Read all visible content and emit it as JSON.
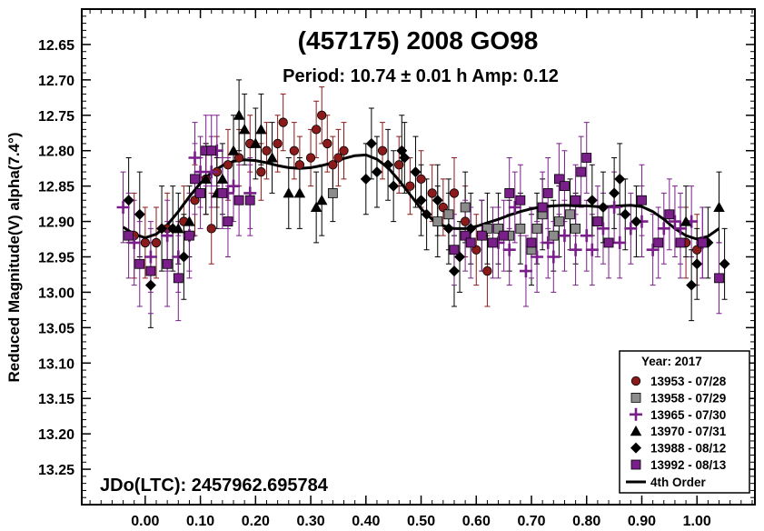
{
  "chart_data": {
    "type": "scatter",
    "title": "(457175) 2008 GO98",
    "subtitle": "Period: 10.74 ± 0.01 h  Amp: 0.12",
    "ylabel": "Reduced Magnitude(V) alpha(7.4°)",
    "xlabel": "",
    "xlim": [
      -0.115,
      1.105
    ],
    "ylim": [
      12.6,
      13.3
    ],
    "y_inverted": true,
    "x_ticks": [
      0.0,
      0.1,
      0.2,
      0.3,
      0.4,
      0.5,
      0.6,
      0.7,
      0.8,
      0.9,
      1.0
    ],
    "x_tick_labels": [
      "0.00",
      "0.10",
      "0.20",
      "0.30",
      "0.40",
      "0.50",
      "0.60",
      "0.70",
      "0.80",
      "0.90",
      "1.00"
    ],
    "y_ticks": [
      12.65,
      12.7,
      12.75,
      12.8,
      12.85,
      12.9,
      12.95,
      13.0,
      13.05,
      13.1,
      13.15,
      13.2,
      13.25
    ],
    "y_tick_labels": [
      "12.65",
      "12.70",
      "12.75",
      "12.80",
      "12.85",
      "12.90",
      "12.95",
      "13.00",
      "13.05",
      "13.10",
      "13.15",
      "13.20",
      "13.25"
    ],
    "grid": false,
    "annotation": "JDo(LTC): 2457962.695784",
    "legend": {
      "placement": "bottom-right",
      "title": "Year: 2017",
      "fit_label": "4th Order"
    },
    "series": [
      {
        "name": "13953 - 07/28",
        "marker": "circle",
        "color": "#8b1a1a",
        "errcolor": "#8b1a1a",
        "points": [
          [
            -0.02,
            12.92,
            0.06
          ],
          [
            0.0,
            12.93,
            0.05
          ],
          [
            0.02,
            12.93,
            0.05
          ],
          [
            0.04,
            12.91,
            0.05
          ],
          [
            0.07,
            12.9,
            0.05
          ],
          [
            0.09,
            12.87,
            0.05
          ],
          [
            0.11,
            12.84,
            0.05
          ],
          [
            0.12,
            12.91,
            0.05
          ],
          [
            0.13,
            12.83,
            0.05
          ],
          [
            0.15,
            12.82,
            0.05
          ],
          [
            0.17,
            12.81,
            0.04
          ],
          [
            0.19,
            12.79,
            0.04
          ],
          [
            0.21,
            12.83,
            0.04
          ],
          [
            0.22,
            12.8,
            0.04
          ],
          [
            0.24,
            12.79,
            0.04
          ],
          [
            0.25,
            12.76,
            0.04
          ],
          [
            0.27,
            12.8,
            0.04
          ],
          [
            0.28,
            12.82,
            0.04
          ],
          [
            0.3,
            12.81,
            0.04
          ],
          [
            0.31,
            12.77,
            0.04
          ],
          [
            0.32,
            12.75,
            0.04
          ],
          [
            0.33,
            12.79,
            0.04
          ],
          [
            0.34,
            12.82,
            0.04
          ],
          [
            0.35,
            12.81,
            0.04
          ],
          [
            0.36,
            12.8,
            0.04
          ],
          [
            0.43,
            12.8,
            0.04
          ],
          [
            0.46,
            12.82,
            0.04
          ],
          [
            0.48,
            12.85,
            0.04
          ],
          [
            0.5,
            12.84,
            0.04
          ],
          [
            0.52,
            12.86,
            0.04
          ],
          [
            0.54,
            12.88,
            0.04
          ],
          [
            0.56,
            12.86,
            0.05
          ],
          [
            0.58,
            12.9,
            0.05
          ],
          [
            0.6,
            12.94,
            0.05
          ],
          [
            0.62,
            12.97,
            0.05
          ],
          [
            0.98,
            12.93,
            0.05
          ],
          [
            1.0,
            12.94,
            0.05
          ]
        ]
      },
      {
        "name": "13958 - 07/29",
        "marker": "square",
        "color": "#8c8c8c",
        "errcolor": "#000000",
        "points": [
          [
            0.34,
            12.86,
            0.04
          ],
          [
            0.53,
            12.9,
            0.05
          ],
          [
            0.55,
            12.89,
            0.05
          ],
          [
            0.58,
            12.88,
            0.05
          ],
          [
            0.62,
            12.91,
            0.05
          ],
          [
            0.64,
            12.91,
            0.05
          ],
          [
            0.66,
            12.92,
            0.05
          ],
          [
            0.68,
            12.91,
            0.05
          ],
          [
            0.7,
            12.94,
            0.05
          ],
          [
            0.71,
            12.91,
            0.05
          ],
          [
            0.72,
            12.89,
            0.05
          ],
          [
            0.74,
            12.92,
            0.05
          ],
          [
            0.75,
            12.9,
            0.05
          ],
          [
            0.77,
            12.89,
            0.05
          ],
          [
            0.78,
            12.91,
            0.05
          ]
        ]
      },
      {
        "name": "13965 - 07/30",
        "marker": "plus",
        "color": "#7a1f8a",
        "errcolor": "#7a1f8a",
        "points": [
          [
            -0.04,
            12.88,
            0.05
          ],
          [
            -0.02,
            12.93,
            0.06
          ],
          [
            0.01,
            12.95,
            0.05
          ],
          [
            0.04,
            12.92,
            0.05
          ],
          [
            0.06,
            12.95,
            0.05
          ],
          [
            0.08,
            12.92,
            0.05
          ],
          [
            0.09,
            12.81,
            0.05
          ],
          [
            0.1,
            12.83,
            0.05
          ],
          [
            0.12,
            12.83,
            0.05
          ],
          [
            0.13,
            12.8,
            0.05
          ],
          [
            0.15,
            12.86,
            0.05
          ],
          [
            0.16,
            12.85,
            0.05
          ],
          [
            0.19,
            12.86,
            0.05
          ],
          [
            0.64,
            12.93,
            0.05
          ],
          [
            0.66,
            12.94,
            0.05
          ],
          [
            0.67,
            12.88,
            0.05
          ],
          [
            0.69,
            12.97,
            0.05
          ],
          [
            0.71,
            12.95,
            0.05
          ],
          [
            0.73,
            12.93,
            0.05
          ],
          [
            0.74,
            12.95,
            0.05
          ],
          [
            0.76,
            12.92,
            0.05
          ],
          [
            0.78,
            12.94,
            0.05
          ],
          [
            0.8,
            12.92,
            0.05
          ],
          [
            0.81,
            12.94,
            0.05
          ],
          [
            0.83,
            12.91,
            0.05
          ],
          [
            0.85,
            12.88,
            0.05
          ],
          [
            0.86,
            12.93,
            0.05
          ],
          [
            0.88,
            12.91,
            0.05
          ],
          [
            0.9,
            12.9,
            0.05
          ],
          [
            0.92,
            12.94,
            0.05
          ],
          [
            0.94,
            12.91,
            0.05
          ],
          [
            0.96,
            12.9,
            0.05
          ],
          [
            0.97,
            12.91,
            0.05
          ],
          [
            0.99,
            12.9,
            0.05
          ],
          [
            1.01,
            12.93,
            0.05
          ]
        ]
      },
      {
        "name": "13970 - 07/31",
        "marker": "triangle",
        "color": "#000000",
        "errcolor": "#000000",
        "points": [
          [
            0.06,
            12.91,
            0.05
          ],
          [
            0.08,
            12.9,
            0.05
          ],
          [
            0.11,
            12.84,
            0.05
          ],
          [
            0.13,
            12.86,
            0.05
          ],
          [
            0.14,
            12.84,
            0.05
          ],
          [
            0.16,
            12.8,
            0.05
          ],
          [
            0.17,
            12.75,
            0.05
          ],
          [
            0.18,
            12.77,
            0.05
          ],
          [
            0.2,
            12.79,
            0.05
          ],
          [
            0.21,
            12.77,
            0.05
          ],
          [
            0.23,
            12.81,
            0.05
          ],
          [
            0.26,
            12.86,
            0.05
          ],
          [
            0.28,
            12.86,
            0.05
          ],
          [
            0.31,
            12.88,
            0.05
          ],
          [
            0.32,
            12.87,
            0.05
          ],
          [
            0.98,
            12.9,
            0.05
          ],
          [
            1.04,
            12.88,
            0.05
          ]
        ]
      },
      {
        "name": "13988 - 08/12",
        "marker": "diamond",
        "color": "#000000",
        "errcolor": "#000000",
        "points": [
          [
            -0.03,
            12.87,
            0.06
          ],
          [
            -0.01,
            12.89,
            0.06
          ],
          [
            0.01,
            12.99,
            0.06
          ],
          [
            0.03,
            12.91,
            0.06
          ],
          [
            0.05,
            12.91,
            0.06
          ],
          [
            0.07,
            12.95,
            0.06
          ],
          [
            0.4,
            12.84,
            0.05
          ],
          [
            0.42,
            12.83,
            0.05
          ],
          [
            0.44,
            12.82,
            0.05
          ],
          [
            0.45,
            12.85,
            0.05
          ],
          [
            0.47,
            12.81,
            0.05
          ],
          [
            0.49,
            12.83,
            0.05
          ],
          [
            0.5,
            12.87,
            0.05
          ],
          [
            0.51,
            12.89,
            0.05
          ],
          [
            0.53,
            12.87,
            0.05
          ],
          [
            0.55,
            12.91,
            0.05
          ],
          [
            0.56,
            12.97,
            0.05
          ],
          [
            0.57,
            12.95,
            0.05
          ],
          [
            0.59,
            12.91,
            0.05
          ],
          [
            0.61,
            12.92,
            0.05
          ],
          [
            0.81,
            12.87,
            0.05
          ],
          [
            0.83,
            12.88,
            0.05
          ],
          [
            0.85,
            12.86,
            0.05
          ],
          [
            0.86,
            12.84,
            0.05
          ],
          [
            0.87,
            12.89,
            0.05
          ],
          [
            0.89,
            12.9,
            0.05
          ],
          [
            0.99,
            12.99,
            0.05
          ],
          [
            1.0,
            12.96,
            0.05
          ],
          [
            1.02,
            12.93,
            0.05
          ],
          [
            1.05,
            12.96,
            0.05
          ],
          [
            0.465,
            12.8,
            0.05
          ],
          [
            0.41,
            12.79,
            0.05
          ]
        ]
      },
      {
        "name": "13992 - 08/13",
        "marker": "square",
        "color": "#7a1f8a",
        "errcolor": "#7a1f8a",
        "points": [
          [
            -0.03,
            12.92,
            0.06
          ],
          [
            -0.01,
            12.96,
            0.06
          ],
          [
            0.01,
            12.97,
            0.06
          ],
          [
            0.04,
            12.96,
            0.06
          ],
          [
            0.06,
            12.98,
            0.06
          ],
          [
            0.08,
            12.92,
            0.06
          ],
          [
            0.09,
            12.84,
            0.05
          ],
          [
            0.1,
            12.86,
            0.05
          ],
          [
            0.11,
            12.8,
            0.05
          ],
          [
            0.12,
            12.8,
            0.05
          ],
          [
            0.14,
            12.86,
            0.05
          ],
          [
            0.15,
            12.9,
            0.05
          ],
          [
            0.17,
            12.87,
            0.05
          ],
          [
            0.19,
            12.87,
            0.05
          ],
          [
            0.56,
            12.94,
            0.05
          ],
          [
            0.58,
            12.92,
            0.05
          ],
          [
            0.59,
            12.93,
            0.05
          ],
          [
            0.61,
            12.92,
            0.05
          ],
          [
            0.63,
            12.93,
            0.05
          ],
          [
            0.65,
            12.92,
            0.05
          ],
          [
            0.66,
            12.86,
            0.05
          ],
          [
            0.68,
            12.87,
            0.05
          ],
          [
            0.7,
            12.93,
            0.05
          ],
          [
            0.72,
            12.88,
            0.05
          ],
          [
            0.73,
            12.86,
            0.05
          ],
          [
            0.75,
            12.84,
            0.05
          ],
          [
            0.76,
            12.85,
            0.05
          ],
          [
            0.78,
            12.87,
            0.05
          ],
          [
            0.79,
            12.83,
            0.05
          ],
          [
            0.8,
            12.81,
            0.05
          ],
          [
            0.82,
            12.9,
            0.05
          ],
          [
            0.84,
            12.93,
            0.05
          ],
          [
            0.9,
            12.87,
            0.05
          ],
          [
            0.93,
            12.93,
            0.05
          ],
          [
            0.95,
            12.89,
            0.05
          ],
          [
            0.97,
            12.93,
            0.05
          ],
          [
            1.01,
            12.93,
            0.05
          ],
          [
            1.04,
            12.98,
            0.05
          ]
        ]
      }
    ],
    "fit": {
      "name": "4th Order",
      "color": "#000000",
      "x": [
        -0.04,
        -0.02,
        0.0,
        0.02,
        0.04,
        0.06,
        0.08,
        0.1,
        0.12,
        0.14,
        0.16,
        0.18,
        0.2,
        0.22,
        0.24,
        0.26,
        0.28,
        0.3,
        0.32,
        0.34,
        0.36,
        0.38,
        0.4,
        0.42,
        0.44,
        0.46,
        0.48,
        0.5,
        0.52,
        0.54,
        0.56,
        0.58,
        0.6,
        0.62,
        0.64,
        0.66,
        0.68,
        0.7,
        0.72,
        0.74,
        0.76,
        0.78,
        0.8,
        0.82,
        0.84,
        0.86,
        0.88,
        0.9,
        0.92,
        0.94,
        0.96,
        0.98,
        1.0,
        1.02,
        1.04
      ],
      "y": [
        12.908,
        12.918,
        12.923,
        12.918,
        12.905,
        12.886,
        12.865,
        12.846,
        12.831,
        12.821,
        12.815,
        12.813,
        12.814,
        12.817,
        12.821,
        12.824,
        12.825,
        12.824,
        12.821,
        12.817,
        12.811,
        12.807,
        12.806,
        12.812,
        12.824,
        12.842,
        12.862,
        12.882,
        12.897,
        12.906,
        12.91,
        12.91,
        12.907,
        12.902,
        12.897,
        12.891,
        12.886,
        12.882,
        12.879,
        12.878,
        12.877,
        12.878,
        12.878,
        12.879,
        12.879,
        12.878,
        12.877,
        12.879,
        12.886,
        12.897,
        12.91,
        12.92,
        12.925,
        12.921,
        12.91
      ]
    }
  }
}
